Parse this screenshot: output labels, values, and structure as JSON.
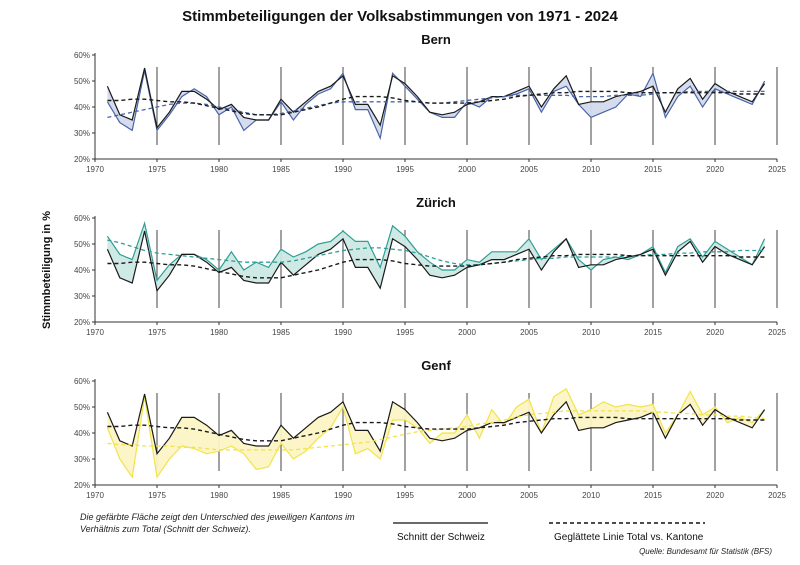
{
  "chart_data": {
    "type": "line",
    "title": "Stimmbeteiligungen der Volksabstimmungen von 1971 - 2024",
    "ylabel": "Stimmbeteiligung in %",
    "xlim": [
      1970,
      2025
    ],
    "ylim": [
      20,
      60
    ],
    "x_ticks": [
      "1970",
      "1975",
      "1980",
      "1985",
      "1990",
      "1995",
      "2000",
      "2005",
      "2010",
      "2015",
      "2020",
      "2025"
    ],
    "y_ticks": [
      "20%",
      "30%",
      "40%",
      "50%",
      "60%"
    ],
    "years": [
      1971,
      1972,
      1973,
      1974,
      1975,
      1976,
      1977,
      1978,
      1979,
      1980,
      1981,
      1982,
      1983,
      1984,
      1985,
      1986,
      1987,
      1988,
      1989,
      1990,
      1991,
      1992,
      1993,
      1994,
      1995,
      1996,
      1997,
      1998,
      1999,
      2000,
      2001,
      2002,
      2003,
      2004,
      2005,
      2006,
      2007,
      2008,
      2009,
      2010,
      2011,
      2012,
      2013,
      2014,
      2015,
      2016,
      2017,
      2018,
      2019,
      2020,
      2021,
      2022,
      2023,
      2024
    ],
    "schweiz": [
      48,
      37,
      35,
      55,
      32,
      38,
      46,
      46,
      43,
      39,
      41,
      36,
      35,
      35,
      43,
      38,
      42,
      46,
      48,
      52,
      41,
      41,
      33,
      52,
      49,
      44,
      38,
      37,
      38,
      41,
      42,
      44,
      44,
      46,
      48,
      40,
      47,
      52,
      41,
      42,
      42,
      44,
      45,
      46,
      48,
      38,
      47,
      51,
      43,
      49,
      46,
      44,
      42,
      49
    ],
    "schweiz_smooth": [
      42.5,
      42.5,
      43,
      43,
      42.5,
      42,
      42,
      41.5,
      40.5,
      39.5,
      38.5,
      37.5,
      37,
      37,
      37,
      38,
      39,
      40,
      41.5,
      43,
      44,
      44,
      44,
      43.5,
      42.5,
      42,
      41.5,
      41.5,
      41.5,
      41.5,
      42,
      42.5,
      43,
      44,
      44.5,
      45,
      45.5,
      45.5,
      46,
      46,
      46,
      46,
      45.5,
      45.5,
      45.5,
      45.5,
      45.5,
      45.5,
      45.5,
      45.5,
      45.5,
      45,
      45,
      45
    ],
    "kantone": [
      {
        "name": "Bern",
        "color": "#4a64a8",
        "fill": "#d3daed",
        "values": [
          42,
          34,
          31,
          54,
          31,
          37,
          44,
          47,
          44,
          37,
          40,
          31,
          35,
          35,
          42,
          35,
          41,
          45,
          47,
          53,
          39,
          39,
          28,
          53,
          48,
          43,
          38,
          36,
          36,
          42,
          40,
          44,
          44,
          45,
          47,
          38,
          46,
          48,
          41,
          36,
          38,
          40,
          45,
          44,
          53,
          36,
          44,
          48,
          40,
          47,
          45,
          43,
          41,
          50
        ],
        "smooth": [
          36,
          37,
          38,
          39,
          40,
          41,
          41.5,
          41.5,
          41,
          40,
          39,
          38,
          37,
          37,
          37.5,
          38.5,
          39.5,
          40.5,
          41.5,
          42,
          42,
          42,
          42,
          42,
          42,
          42,
          41.5,
          41.5,
          42,
          42.5,
          43,
          43.5,
          44,
          44.5,
          44.5,
          44.5,
          44.5,
          44.5,
          44,
          44,
          44,
          44.5,
          44.5,
          44.5,
          45,
          45.5,
          45.5,
          46,
          46,
          46,
          46,
          46,
          46,
          46
        ]
      },
      {
        "name": "Zürich",
        "color": "#2f9e97",
        "fill": "#cce8e4",
        "values": [
          53,
          46,
          44,
          58,
          36,
          42,
          46,
          46,
          44,
          40,
          47,
          40,
          43,
          41,
          48,
          45,
          47,
          50,
          51,
          55,
          51,
          51,
          41,
          57,
          53,
          47,
          43,
          40,
          40,
          44,
          43,
          47,
          47,
          47,
          52,
          44,
          48,
          52,
          44,
          40,
          44,
          45,
          44,
          46,
          49,
          39,
          49,
          52,
          45,
          51,
          48,
          45,
          42,
          52
        ],
        "smooth": [
          51.5,
          50.5,
          49,
          47.5,
          46.5,
          46,
          45.5,
          45,
          44.5,
          44,
          43.5,
          43,
          43,
          43,
          43,
          43.5,
          44.5,
          45.5,
          46.5,
          47.5,
          48,
          48.5,
          48.5,
          48,
          47.5,
          46.5,
          45,
          43.5,
          42.5,
          42,
          42,
          42.5,
          43,
          43.5,
          44,
          44.5,
          44.5,
          45,
          45,
          45,
          45,
          45,
          45.5,
          45.5,
          46,
          46,
          46.5,
          46.5,
          47,
          47,
          47,
          47.5,
          47.5,
          47.5
        ]
      },
      {
        "name": "Genf",
        "color": "#f2e34b",
        "fill": "#fbf4c4",
        "values": [
          42,
          30,
          23,
          54,
          23,
          30,
          35,
          34,
          32,
          33,
          35,
          32,
          26,
          27,
          36,
          30,
          33,
          38,
          42,
          50,
          32,
          34,
          30,
          45,
          45,
          42,
          36,
          40,
          40,
          47,
          38,
          49,
          43,
          50,
          53,
          40,
          54,
          57,
          47,
          49,
          52,
          50,
          51,
          50,
          51,
          40,
          47,
          56,
          47,
          50,
          44,
          46,
          44,
          49
        ],
        "smooth": [
          36,
          35.5,
          35.5,
          35,
          35,
          35,
          34.5,
          34.5,
          34,
          33.5,
          33.5,
          33.5,
          33.5,
          33.5,
          33.5,
          33.5,
          34,
          34.5,
          35,
          35.5,
          36,
          36.5,
          37.5,
          38.5,
          39.5,
          40.5,
          41,
          41.5,
          42,
          42.5,
          43.5,
          44,
          45,
          46,
          47,
          47.5,
          48,
          48.5,
          48.5,
          48.5,
          48.5,
          48.5,
          48.5,
          48.5,
          48,
          48,
          47.5,
          47.5,
          47,
          47,
          46.5,
          46.5,
          46,
          45.5
        ]
      }
    ],
    "legend": {
      "solid": "Schnitt der Schweiz",
      "dashed": "Geglättete Linie Total vs. Kantone"
    },
    "note": "Die gefärbte Fläche zeigt den Unterschied des jeweiligen Kantons im Verhältnis zum Total (Schnitt der Schweiz).",
    "source": "Quelle: Bundesamt für Statistik (BFS)"
  },
  "colors": {
    "schweiz": "#1a1a1a",
    "axis": "#333333",
    "grid": "#555555"
  }
}
